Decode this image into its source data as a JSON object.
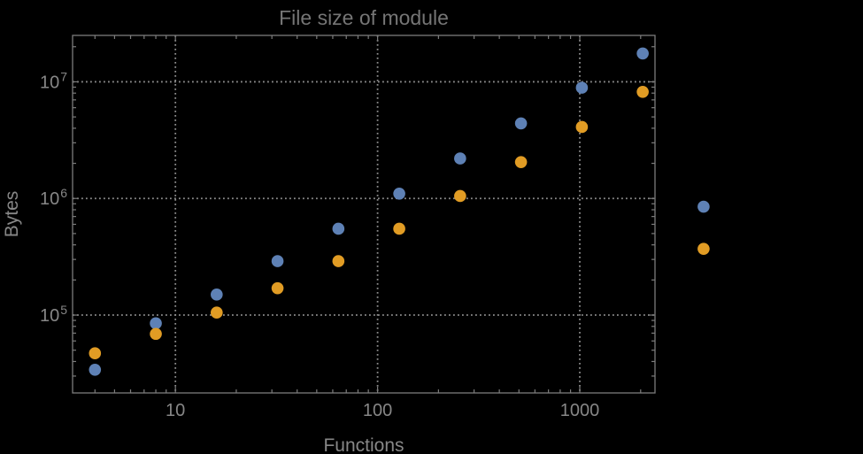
{
  "app": {
    "background_color": "#000000"
  },
  "chart_data": {
    "type": "scatter",
    "title": "File size of module",
    "xlabel": "Functions",
    "ylabel": "Bytes",
    "x_scale": "log",
    "y_scale": "log",
    "x_range": [
      3.1,
      2355
    ],
    "y_range": [
      21500,
      25000000
    ],
    "grid": true,
    "legend": null,
    "x_major_ticks": [
      10,
      100,
      1000
    ],
    "x_tick_labels": [
      "10",
      "100",
      "1000"
    ],
    "y_major_ticks": [
      100000,
      1000000,
      10000000
    ],
    "y_tick_labels": [
      {
        "base": "10",
        "exp": "5"
      },
      {
        "base": "10",
        "exp": "6"
      },
      {
        "base": "10",
        "exp": "7"
      }
    ],
    "series": [
      {
        "name": "blue-series",
        "color": "#5e81b5",
        "points": [
          [
            4,
            34000
          ],
          [
            8,
            85000
          ],
          [
            16,
            150000
          ],
          [
            32,
            290000
          ],
          [
            64,
            550000
          ],
          [
            128,
            1100000
          ],
          [
            256,
            2200000
          ],
          [
            512,
            4400000
          ],
          [
            1024,
            8900000
          ],
          [
            2048,
            17500000
          ],
          [
            4096,
            850000
          ]
        ]
      },
      {
        "name": "orange-series",
        "color": "#e19c24",
        "points": [
          [
            4,
            47000
          ],
          [
            8,
            69000
          ],
          [
            16,
            105000
          ],
          [
            32,
            170000
          ],
          [
            64,
            290000
          ],
          [
            128,
            550000
          ],
          [
            256,
            1050000
          ],
          [
            512,
            2050000
          ],
          [
            1024,
            4100000
          ],
          [
            2048,
            8200000
          ],
          [
            4096,
            370000
          ]
        ]
      }
    ],
    "styles": {
      "frame_color": "#7c7c7c",
      "grid_color": "#8c8c8c",
      "tick_color": "#7c7c7c",
      "label_color": "#878787",
      "title_color": "#757575",
      "point_radius": 6.8
    }
  }
}
